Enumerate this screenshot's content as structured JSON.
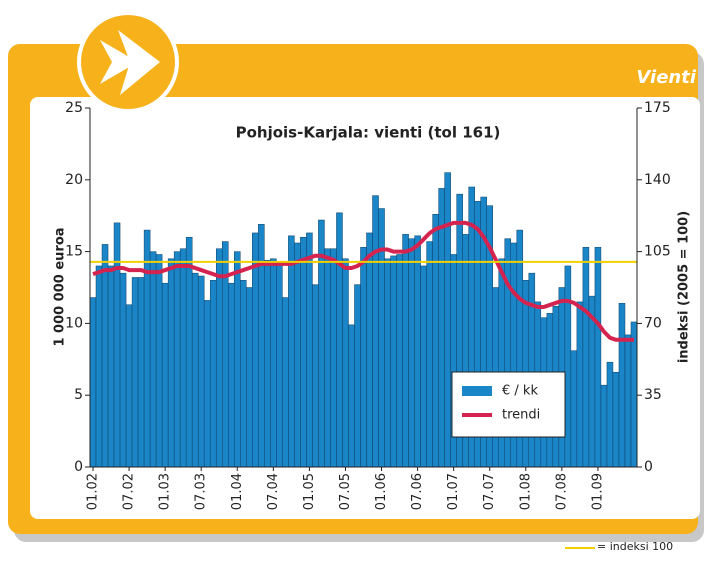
{
  "chart_data": {
    "type": "bar",
    "header": "Vienti",
    "title": "Pohjois-Karjala: vienti (tol 161)",
    "y_label": "1 000 000 euroa",
    "y2_label": "indeksi (2005 = 100)",
    "categories": [
      "01.02",
      null,
      null,
      null,
      null,
      null,
      "07.02",
      null,
      null,
      null,
      null,
      null,
      "01.03",
      null,
      null,
      null,
      null,
      null,
      "07.03",
      null,
      null,
      null,
      null,
      null,
      "01.04",
      null,
      null,
      null,
      null,
      null,
      "07.04",
      null,
      null,
      null,
      null,
      null,
      "01.05",
      null,
      null,
      null,
      null,
      null,
      "07.05",
      null,
      null,
      null,
      null,
      null,
      "01.06",
      null,
      null,
      null,
      null,
      null,
      "07.06",
      null,
      null,
      null,
      null,
      null,
      "01.07",
      null,
      null,
      null,
      null,
      null,
      "07.07",
      null,
      null,
      null,
      null,
      null,
      "01.08",
      null,
      null,
      null,
      null,
      null,
      "07.08",
      null,
      null,
      null,
      null,
      null,
      "01.09",
      null,
      null,
      null,
      null,
      null,
      null
    ],
    "series": [
      {
        "name": "€ / kk",
        "color": "#1a86c8",
        "values": [
          11.8,
          14,
          15.5,
          14,
          17,
          13.5,
          11.3,
          13.2,
          13.2,
          16.5,
          15,
          14.8,
          12.8,
          14.5,
          15,
          15.2,
          16,
          13.5,
          13.3,
          11.6,
          13,
          15.2,
          15.7,
          12.8,
          15,
          13,
          12.5,
          16.3,
          16.9,
          14.4,
          14.5,
          14.2,
          11.8,
          16.1,
          15.6,
          16,
          16.3,
          12.7,
          17.2,
          15.2,
          15.2,
          17.7,
          14.5,
          9.9,
          12.7,
          15.3,
          16.3,
          18.9,
          18,
          14.5,
          14.7,
          14.8,
          16.2,
          15.9,
          16.1,
          14,
          15.7,
          17.6,
          19.4,
          20.5,
          14.8,
          19,
          16.2,
          19.5,
          18.5,
          18.8,
          18.2,
          12.5,
          14.5,
          15.9,
          15.6,
          16.5,
          13,
          13.5,
          11.5,
          10.4,
          10.7,
          11.2,
          12.5,
          14,
          8.1,
          11.5,
          15.3,
          11.9,
          15.3,
          5.7,
          7.3,
          6.6,
          11.4,
          9.2,
          10.1
        ]
      },
      {
        "name": "trendi",
        "color": "#d4234f",
        "axis": "y2",
        "values": [
          94,
          95,
          96,
          96,
          97,
          97,
          96,
          96,
          96,
          95,
          95,
          95,
          96,
          97,
          98,
          98,
          98,
          97,
          96,
          95,
          94,
          93,
          93,
          94,
          95,
          96,
          97,
          98,
          99,
          99,
          99,
          99,
          99,
          99,
          100,
          101,
          102,
          103,
          103,
          102,
          101,
          99,
          97,
          97,
          98,
          100,
          103,
          105,
          106,
          106,
          105,
          105,
          105,
          106,
          108,
          111,
          114,
          116,
          117,
          118,
          119,
          119,
          119,
          118,
          116,
          112,
          107,
          101,
          95,
          89,
          85,
          82,
          80,
          79,
          78,
          78,
          79,
          80,
          81,
          81,
          80,
          78,
          76,
          73,
          70,
          66,
          63,
          62,
          62,
          62,
          62
        ]
      }
    ],
    "reference_line": {
      "value": 100,
      "label": "= indeksi 100",
      "color": "#f0d000",
      "axis": "y2"
    },
    "ylim": [
      0,
      25
    ],
    "yticks": [
      0,
      5,
      10,
      15,
      20,
      25
    ],
    "y2lim": [
      0,
      175
    ],
    "y2ticks": [
      0,
      35,
      70,
      105,
      140,
      175
    ]
  }
}
